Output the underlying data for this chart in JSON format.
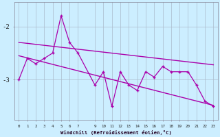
{
  "xlabel": "Windchill (Refroidissement éolien,°C)",
  "hours": [
    0,
    1,
    2,
    3,
    4,
    5,
    6,
    7,
    9,
    10,
    11,
    12,
    13,
    14,
    15,
    16,
    17,
    18,
    19,
    20,
    21,
    22,
    23
  ],
  "windchill": [
    -3.0,
    -2.6,
    -2.7,
    -2.6,
    -2.5,
    -1.8,
    -2.3,
    -2.5,
    -3.1,
    -2.85,
    -3.5,
    -2.85,
    -3.1,
    -3.2,
    -2.85,
    -2.95,
    -2.75,
    -2.85,
    -2.85,
    -2.85,
    -3.1,
    -3.4,
    -3.5
  ],
  "trend1_x": [
    0,
    23
  ],
  "trend1_y": [
    -2.3,
    -2.72
  ],
  "trend2_x": [
    0,
    23
  ],
  "trend2_y": [
    -2.55,
    -3.48
  ],
  "line_color": "#aa00aa",
  "bg_color": "#cceeff",
  "grid_color": "#aabbcc",
  "yticks": [
    -3,
    -2
  ],
  "ylim": [
    -3.75,
    -1.55
  ],
  "xlim": [
    -0.5,
    23.5
  ]
}
